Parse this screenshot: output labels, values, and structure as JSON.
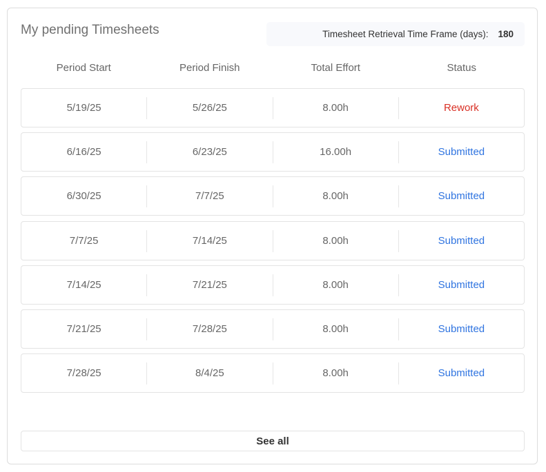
{
  "title": "My pending Timesheets",
  "retrieval": {
    "label": "Timesheet Retrieval Time Frame (days):",
    "value": "180"
  },
  "columns": [
    "Period Start",
    "Period Finish",
    "Total Effort",
    "Status"
  ],
  "rows": [
    {
      "start": "5/19/25",
      "finish": "5/26/25",
      "effort": "8.00h",
      "status": "Rework"
    },
    {
      "start": "6/16/25",
      "finish": "6/23/25",
      "effort": "16.00h",
      "status": "Submitted"
    },
    {
      "start": "6/30/25",
      "finish": "7/7/25",
      "effort": "8.00h",
      "status": "Submitted"
    },
    {
      "start": "7/7/25",
      "finish": "7/14/25",
      "effort": "8.00h",
      "status": "Submitted"
    },
    {
      "start": "7/14/25",
      "finish": "7/21/25",
      "effort": "8.00h",
      "status": "Submitted"
    },
    {
      "start": "7/21/25",
      "finish": "7/28/25",
      "effort": "8.00h",
      "status": "Submitted"
    },
    {
      "start": "7/28/25",
      "finish": "8/4/25",
      "effort": "8.00h",
      "status": "Submitted"
    }
  ],
  "status_colors": {
    "Rework": "#d93025",
    "Submitted": "#2f74e0"
  },
  "see_all_label": "See all"
}
